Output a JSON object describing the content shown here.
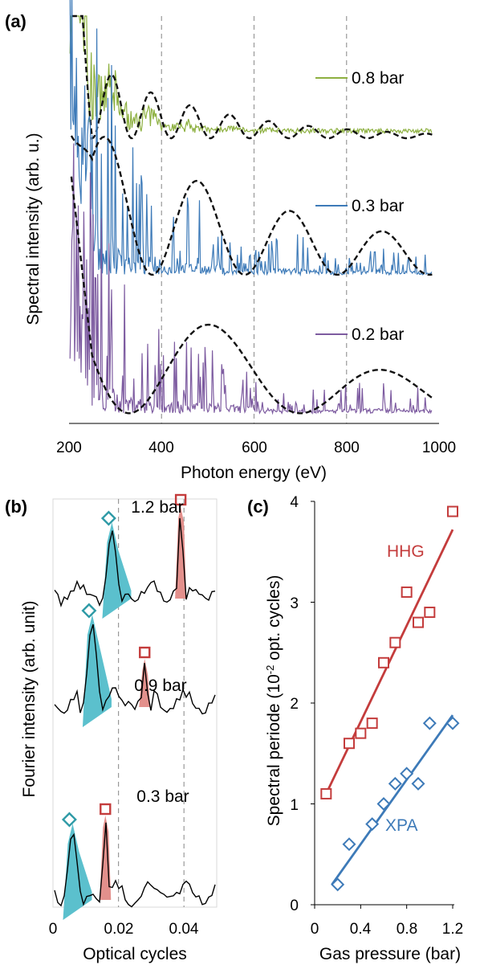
{
  "chart_data": [
    {
      "type": "line",
      "panel_label": "(a)",
      "xlabel": "Photon energy (eV)",
      "ylabel": "Spectral intensity (arb. u.)",
      "xlim": [
        200,
        1000
      ],
      "xticks": [
        "200",
        "400",
        "600",
        "800",
        "1000"
      ],
      "grid": {
        "vertical_dashed_at": [
          400,
          600,
          800
        ]
      },
      "legend_position": "right, beside each trace",
      "series": [
        {
          "name": "0.8 bar",
          "color": "#8db040",
          "baseline_fraction": 0.3,
          "envelope": {
            "type": "dashed-black",
            "period_ev": 85,
            "first_peak_ev": 293
          }
        },
        {
          "name": "0.3 bar",
          "color": "#3d7ab8",
          "baseline_fraction": 0.635,
          "envelope": {
            "type": "dashed-black",
            "period_ev": 200,
            "first_peak_ev": 280
          }
        },
        {
          "name": "0.2 bar",
          "color": "#7d5ba0",
          "baseline_fraction": 0.975,
          "envelope": {
            "type": "dashed-black",
            "period_ev": 370,
            "first_peak_ev": 515
          }
        }
      ]
    },
    {
      "type": "line",
      "panel_label": "(b)",
      "xlabel": "Optical cycles",
      "ylabel": "Fourier intensity (arb. unit)",
      "xlim": [
        0,
        0.05
      ],
      "xticks": [
        "0",
        "0.02",
        "0.04"
      ],
      "grid": {
        "vertical_dashed_at": [
          0.02,
          0.04
        ]
      },
      "colors": {
        "xpa_fill": "#5bc0cd",
        "xpa_marker": "#2e9aa6",
        "hhg_fill": "#e3908c",
        "hhg_marker": "#c43c3c"
      },
      "traces": [
        {
          "name": "1.2 bar",
          "xpa_peak_x": 0.018,
          "hhg_peak_x": 0.039
        },
        {
          "name": "0.9 bar",
          "xpa_peak_x": 0.012,
          "hhg_peak_x": 0.028
        },
        {
          "name": "0.3 bar",
          "xpa_peak_x": 0.006,
          "hhg_peak_x": 0.016
        }
      ]
    },
    {
      "type": "scatter",
      "panel_label": "(c)",
      "xlabel": "Gas pressure (bar)",
      "ylabel_prefix": "Spectral periode (10",
      "ylabel_sup": "-2",
      "ylabel_suffix": " opt. cycles)",
      "xlim": [
        0,
        1.2
      ],
      "ylim": [
        0,
        4
      ],
      "xticks": [
        "0",
        "0.4",
        "0.8",
        "1.2"
      ],
      "yticks": [
        "0",
        "1",
        "2",
        "3",
        "4"
      ],
      "grid": false,
      "series": [
        {
          "name": "HHG",
          "marker": "square",
          "color": "#c43c3c",
          "x": [
            0.1,
            0.3,
            0.4,
            0.5,
            0.6,
            0.7,
            0.8,
            0.9,
            1.0,
            1.2
          ],
          "y": [
            1.1,
            1.6,
            1.7,
            1.8,
            2.4,
            2.6,
            3.1,
            2.8,
            2.9,
            3.9
          ],
          "fit": {
            "x0": 0.1,
            "y0": 1.1,
            "x1": 1.2,
            "y1": 3.72
          }
        },
        {
          "name": "XPA",
          "marker": "diamond",
          "color": "#3d7ab8",
          "x": [
            0.2,
            0.3,
            0.5,
            0.6,
            0.7,
            0.8,
            0.9,
            1.0,
            1.2
          ],
          "y": [
            0.2,
            0.6,
            0.8,
            1.0,
            1.2,
            1.3,
            1.2,
            1.8,
            1.8
          ],
          "fit": {
            "x0": 0.15,
            "y0": 0.2,
            "x1": 1.2,
            "y1": 1.88
          }
        }
      ]
    }
  ]
}
